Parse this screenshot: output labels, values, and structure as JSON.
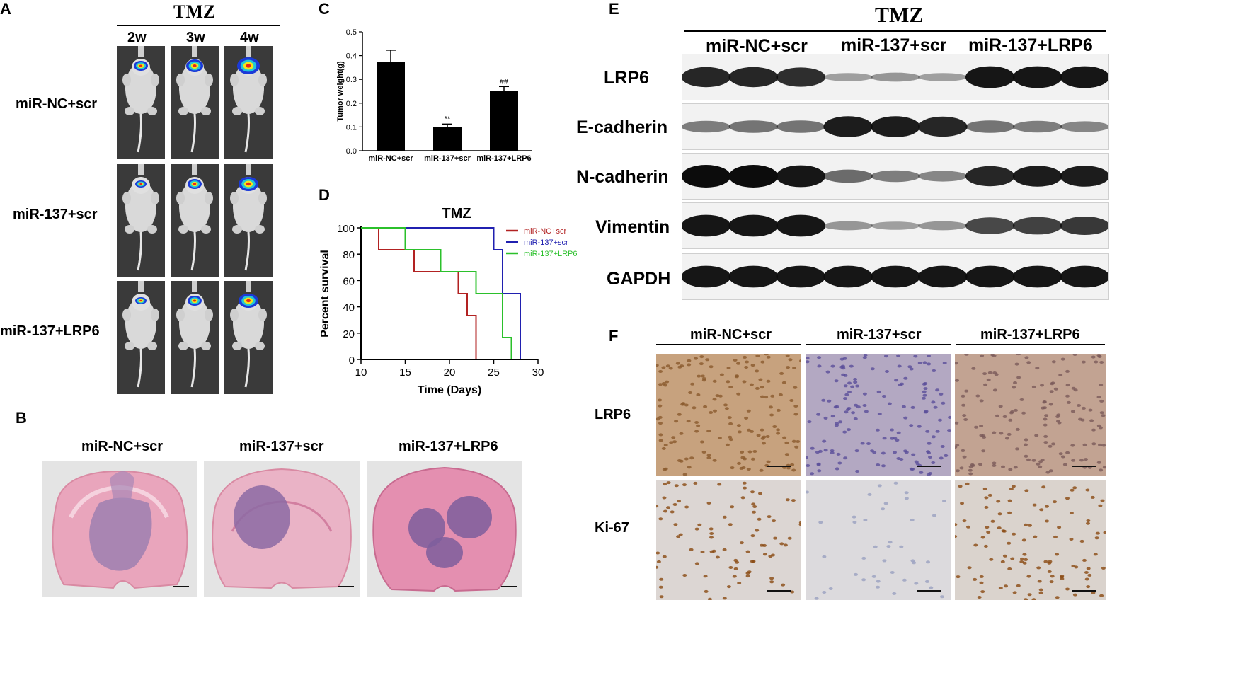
{
  "panel_a": {
    "letter": "A",
    "treatment": "TMZ",
    "timepoints": [
      "2w",
      "3w",
      "4w"
    ],
    "groups": [
      "miR-NC+scr",
      "miR-137+scr",
      "miR-137+LRP6"
    ]
  },
  "panel_b": {
    "letter": "B",
    "groups": [
      "miR-NC+scr",
      "miR-137+scr",
      "miR-137+LRP6"
    ]
  },
  "panel_c": {
    "letter": "C",
    "chart_data": {
      "type": "bar",
      "categories": [
        "miR-NC+scr",
        "miR-137+scr",
        "miR-137+LRP6"
      ],
      "values": [
        0.375,
        0.1,
        0.252
      ],
      "errors": [
        0.048,
        0.012,
        0.018
      ],
      "annotations": [
        "",
        "**",
        "##"
      ],
      "ylabel": "Tumor weight(g)",
      "ylim": [
        0,
        0.5
      ],
      "yticks": [
        "0.0",
        "0.1",
        "0.2",
        "0.3",
        "0.4",
        "0.5"
      ],
      "bar_color": "#000000"
    }
  },
  "panel_d": {
    "letter": "D",
    "chart_data": {
      "type": "line",
      "step": true,
      "title": "TMZ",
      "xlabel": "Time (Days)",
      "ylabel": "Percent survival",
      "xlim": [
        10,
        30
      ],
      "ylim": [
        0,
        100
      ],
      "xticks": [
        "10",
        "15",
        "20",
        "25",
        "30"
      ],
      "yticks": [
        "0",
        "20",
        "40",
        "60",
        "80",
        "100"
      ],
      "series": [
        {
          "name": "miR-NC+scr",
          "color": "#b22222",
          "points": [
            [
              10,
              100
            ],
            [
              12,
              100
            ],
            [
              12,
              83.3
            ],
            [
              16,
              83.3
            ],
            [
              16,
              66.7
            ],
            [
              21,
              66.7
            ],
            [
              21,
              50
            ],
            [
              22,
              50
            ],
            [
              22,
              33.3
            ],
            [
              23,
              33.3
            ],
            [
              23,
              0
            ]
          ]
        },
        {
          "name": "miR-137+scr",
          "color": "#2020b0",
          "points": [
            [
              10,
              100
            ],
            [
              25,
              100
            ],
            [
              25,
              83.3
            ],
            [
              26,
              83.3
            ],
            [
              26,
              50
            ],
            [
              28,
              50
            ],
            [
              28,
              0
            ]
          ]
        },
        {
          "name": "miR-137+LRP6",
          "color": "#2bc02b",
          "points": [
            [
              10,
              100
            ],
            [
              15,
              100
            ],
            [
              15,
              83.3
            ],
            [
              19,
              83.3
            ],
            [
              19,
              66.7
            ],
            [
              23,
              66.7
            ],
            [
              23,
              50
            ],
            [
              26,
              50
            ],
            [
              26,
              16.7
            ],
            [
              27,
              16.7
            ],
            [
              27,
              0
            ]
          ]
        }
      ],
      "legend": "top-right"
    }
  },
  "panel_e": {
    "letter": "E",
    "treatment": "TMZ",
    "groups": [
      "miR-NC+scr",
      "miR-137+scr",
      "miR-137+LRP6"
    ],
    "proteins": [
      "LRP6",
      "E-cadherin",
      "N-cadherin",
      "Vimentin",
      "GAPDH"
    ],
    "band_intensity": [
      [
        0.85,
        0.85,
        0.8,
        0.15,
        0.2,
        0.15,
        0.95,
        0.95,
        0.95
      ],
      [
        0.35,
        0.4,
        0.4,
        0.9,
        0.9,
        0.85,
        0.4,
        0.35,
        0.3
      ],
      [
        1.0,
        1.0,
        0.95,
        0.45,
        0.35,
        0.3,
        0.85,
        0.9,
        0.9
      ],
      [
        0.95,
        0.95,
        0.95,
        0.2,
        0.15,
        0.2,
        0.65,
        0.7,
        0.75
      ],
      [
        0.95,
        0.95,
        0.95,
        0.95,
        0.95,
        0.95,
        0.95,
        0.95,
        0.95
      ]
    ]
  },
  "panel_f": {
    "letter": "F",
    "groups": [
      "miR-NC+scr",
      "miR-137+scr",
      "miR-137+LRP6"
    ],
    "stains": [
      "LRP6",
      "Ki-67"
    ]
  }
}
